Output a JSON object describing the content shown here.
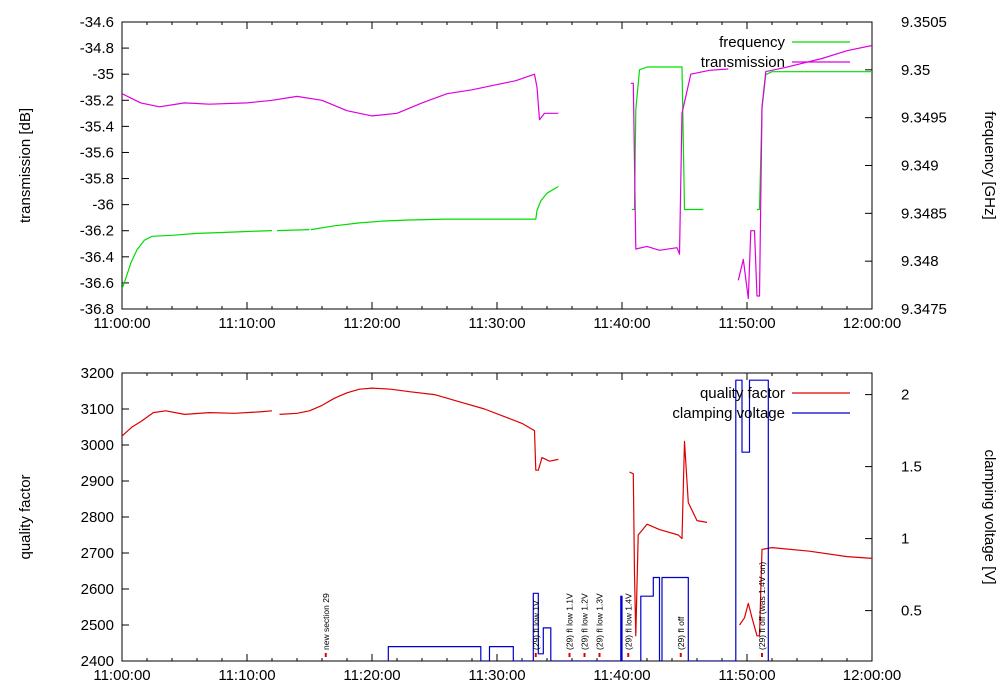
{
  "colors": {
    "frequency": "#00dd00",
    "transmission": "#dd00dd",
    "quality_factor": "#dd0000",
    "clamping_voltage": "#0000cc",
    "annotation_marker": "#dd0000",
    "axis": "#000000"
  },
  "chart_data": [
    {
      "type": "line",
      "panel": "top",
      "xlabel": "",
      "x_ticks": [
        "11:00:00",
        "11:10:00",
        "11:20:00",
        "11:30:00",
        "11:40:00",
        "11:50:00",
        "12:00:00"
      ],
      "x_range_min": [
        0,
        60
      ],
      "ylabel": "transmission [dB]",
      "ylim": [
        -36.8,
        -34.6
      ],
      "y_ticks": [
        "-34.6",
        "-34.8",
        "-35",
        "-35.2",
        "-35.4",
        "-35.6",
        "-35.8",
        "-36",
        "-36.2",
        "-36.4",
        "-36.6",
        "-36.8"
      ],
      "y2label": "frequency [GHz]",
      "y2lim": [
        9.3475,
        9.3505
      ],
      "y2_ticks": [
        "9.3505",
        "9.35",
        "9.3495",
        "9.349",
        "9.3485",
        "9.348",
        "9.3475"
      ],
      "legend": [
        "frequency",
        "transmission"
      ],
      "legend_position": "top-right",
      "series": [
        {
          "name": "frequency",
          "axis": "right",
          "color_key": "frequency",
          "segments": [
            [
              [
                0,
                9.34771
              ],
              [
                0.3,
                9.34782
              ],
              [
                0.7,
                9.34798
              ],
              [
                1.2,
                9.34812
              ],
              [
                1.8,
                9.34822
              ],
              [
                2.4,
                9.34826
              ],
              [
                4,
                9.34827
              ],
              [
                6,
                9.34829
              ],
              [
                8,
                9.3483
              ],
              [
                10,
                9.34831
              ],
              [
                12,
                9.34832
              ]
            ],
            [
              [
                12.4,
                9.34832
              ],
              [
                15,
                9.34833
              ]
            ],
            [
              [
                15.1,
                9.34833
              ],
              [
                17,
                9.34837
              ],
              [
                19,
                9.3484
              ],
              [
                21,
                9.34842
              ],
              [
                23,
                9.34843
              ],
              [
                26,
                9.34844
              ],
              [
                29,
                9.34844
              ],
              [
                33.1,
                9.34844
              ],
              [
                33.2,
                9.34853
              ],
              [
                33.5,
                9.34863
              ],
              [
                34,
                9.34871
              ],
              [
                34.9,
                9.34878
              ]
            ],
            [
              [
                40.8,
                9.34854
              ],
              [
                41.0,
                9.34854
              ],
              [
                41.1,
                9.34958
              ],
              [
                41.4,
                9.35
              ],
              [
                42,
                9.35003
              ],
              [
                44.8,
                9.35003
              ],
              [
                45.0,
                9.34854
              ],
              [
                46.5,
                9.34854
              ]
            ],
            [
              [
                50.8,
                9.34854
              ],
              [
                51.0,
                9.34854
              ],
              [
                51.2,
                9.3496
              ],
              [
                51.5,
                9.34995
              ],
              [
                52,
                9.34998
              ],
              [
                60,
                9.34998
              ]
            ]
          ]
        },
        {
          "name": "transmission",
          "axis": "left",
          "color_key": "transmission",
          "segments": [
            [
              [
                0,
                -35.15
              ],
              [
                1.5,
                -35.22
              ],
              [
                3,
                -35.25
              ],
              [
                5,
                -35.22
              ],
              [
                7,
                -35.23
              ],
              [
                10,
                -35.22
              ],
              [
                12,
                -35.2
              ],
              [
                14,
                -35.17
              ],
              [
                16,
                -35.2
              ],
              [
                18,
                -35.28
              ],
              [
                20,
                -35.32
              ],
              [
                22,
                -35.3
              ],
              [
                24,
                -35.22
              ],
              [
                26,
                -35.15
              ],
              [
                28,
                -35.12
              ],
              [
                30,
                -35.08
              ],
              [
                31.5,
                -35.05
              ],
              [
                33.0,
                -35.0
              ],
              [
                33.2,
                -35.1
              ],
              [
                33.4,
                -35.35
              ],
              [
                33.8,
                -35.3
              ],
              [
                34.9,
                -35.3
              ]
            ],
            [
              [
                40.7,
                -35.07
              ],
              [
                40.9,
                -35.07
              ],
              [
                41.1,
                -36.34
              ],
              [
                42,
                -36.32
              ],
              [
                43,
                -36.35
              ],
              [
                44.4,
                -36.33
              ],
              [
                44.6,
                -36.38
              ],
              [
                44.8,
                -35.3
              ],
              [
                45.5,
                -35.0
              ],
              [
                47,
                -34.97
              ],
              [
                48.5,
                -34.96
              ]
            ],
            [
              [
                49.3,
                -36.58
              ],
              [
                49.7,
                -36.42
              ],
              [
                50.1,
                -36.72
              ],
              [
                50.3,
                -36.2
              ],
              [
                50.6,
                -36.2
              ],
              [
                50.8,
                -36.7
              ],
              [
                51.0,
                -36.7
              ],
              [
                51.2,
                -35.25
              ],
              [
                51.5,
                -34.98
              ],
              [
                53,
                -34.95
              ],
              [
                56,
                -34.88
              ],
              [
                58,
                -34.82
              ],
              [
                60,
                -34.78
              ]
            ]
          ]
        }
      ]
    },
    {
      "type": "line",
      "panel": "bottom",
      "xlabel": "",
      "x_ticks": [
        "11:00:00",
        "11:10:00",
        "11:20:00",
        "11:30:00",
        "11:40:00",
        "11:50:00",
        "12:00:00"
      ],
      "x_range_min": [
        0,
        60
      ],
      "ylabel": "quality factor",
      "ylim": [
        2400,
        3200
      ],
      "y_ticks": [
        "3200",
        "3100",
        "3000",
        "2900",
        "2800",
        "2700",
        "2600",
        "2500",
        "2400"
      ],
      "y2label": "clamping voltage [V]",
      "y2lim": [
        0.15,
        2.15
      ],
      "y2_ticks": [
        "2",
        "1.5",
        "1",
        "0.5"
      ],
      "legend": [
        "quality factor",
        "clamping voltage"
      ],
      "legend_position": "top-right",
      "series": [
        {
          "name": "quality factor",
          "axis": "left",
          "color_key": "quality_factor",
          "segments": [
            [
              [
                0,
                3025
              ],
              [
                0.8,
                3050
              ],
              [
                1.5,
                3065
              ],
              [
                2.5,
                3090
              ],
              [
                3.5,
                3095
              ],
              [
                5,
                3085
              ],
              [
                7,
                3090
              ],
              [
                9,
                3088
              ],
              [
                11,
                3092
              ],
              [
                12,
                3095
              ]
            ],
            [
              [
                12.6,
                3085
              ],
              [
                14,
                3088
              ],
              [
                15,
                3095
              ],
              [
                16,
                3110
              ],
              [
                17,
                3130
              ],
              [
                18,
                3145
              ],
              [
                19,
                3155
              ],
              [
                20,
                3158
              ],
              [
                21.5,
                3155
              ],
              [
                23,
                3148
              ],
              [
                25,
                3140
              ],
              [
                27,
                3120
              ],
              [
                29,
                3100
              ],
              [
                30.5,
                3080
              ],
              [
                32,
                3060
              ],
              [
                33.0,
                3040
              ],
              [
                33.1,
                2930
              ],
              [
                33.3,
                2930
              ],
              [
                33.6,
                2965
              ],
              [
                34.2,
                2955
              ],
              [
                34.9,
                2960
              ]
            ],
            [
              [
                40.6,
                2925
              ],
              [
                40.9,
                2920
              ],
              [
                41.0,
                2640
              ],
              [
                41.1,
                2470
              ],
              [
                41.3,
                2750
              ],
              [
                42,
                2780
              ],
              [
                43,
                2765
              ],
              [
                44.5,
                2750
              ],
              [
                44.8,
                2740
              ],
              [
                45.0,
                3010
              ],
              [
                45.3,
                2840
              ],
              [
                46,
                2790
              ],
              [
                46.8,
                2785
              ]
            ],
            [
              [
                49.4,
                2500
              ],
              [
                49.8,
                2520
              ],
              [
                50.1,
                2560
              ],
              [
                50.4,
                2520
              ],
              [
                50.8,
                2470
              ],
              [
                51.0,
                2470
              ],
              [
                51.2,
                2710
              ],
              [
                52,
                2715
              ],
              [
                55,
                2705
              ],
              [
                58,
                2690
              ],
              [
                60,
                2685
              ]
            ]
          ]
        },
        {
          "name": "clamping voltage",
          "axis": "right",
          "color_key": "clamping_voltage",
          "segments": [
            [
              [
                21.3,
                0.15
              ],
              [
                21.3,
                0.25
              ],
              [
                28.7,
                0.25
              ],
              [
                28.7,
                0.15
              ],
              [
                29.4,
                0.15
              ],
              [
                29.4,
                0.25
              ],
              [
                31.3,
                0.25
              ],
              [
                31.3,
                0.15
              ],
              [
                32.9,
                0.15
              ],
              [
                32.9,
                0.62
              ],
              [
                33.3,
                0.62
              ],
              [
                33.3,
                0.2
              ],
              [
                33.7,
                0.2
              ],
              [
                33.7,
                0.38
              ],
              [
                34.3,
                0.38
              ],
              [
                34.3,
                0.15
              ],
              [
                39.9,
                0.15
              ],
              [
                39.9,
                0.6
              ],
              [
                40.0,
                0.6
              ],
              [
                40.0,
                0.15
              ],
              [
                41.5,
                0.15
              ],
              [
                41.5,
                0.6
              ],
              [
                42.5,
                0.6
              ],
              [
                42.5,
                0.73
              ],
              [
                43.0,
                0.73
              ],
              [
                43.0,
                0.15
              ],
              [
                43.2,
                0.15
              ],
              [
                43.2,
                0.73
              ],
              [
                45.3,
                0.73
              ],
              [
                45.3,
                0.15
              ],
              [
                49.1,
                0.15
              ],
              [
                49.1,
                2.1
              ],
              [
                49.6,
                2.1
              ],
              [
                49.6,
                1.6
              ],
              [
                50.2,
                1.6
              ],
              [
                50.2,
                2.1
              ],
              [
                51.7,
                2.1
              ],
              [
                51.7,
                0.15
              ]
            ]
          ]
        }
      ],
      "annotations": [
        {
          "t": 16.3,
          "label": "new section 29"
        },
        {
          "t": 33.1,
          "label": "(29) fl low 1V"
        },
        {
          "t": 35.8,
          "label": "(29) fl low 1.1V"
        },
        {
          "t": 37.0,
          "label": "(29) fl low 1.2V"
        },
        {
          "t": 38.2,
          "label": "(29) fl low 1.3V"
        },
        {
          "t": 40.5,
          "label": "(29) fl low 1.4V"
        },
        {
          "t": 44.7,
          "label": "(29) fl off"
        },
        {
          "t": 51.2,
          "label": "(29) fl off (was 1.4V on)"
        }
      ]
    }
  ]
}
